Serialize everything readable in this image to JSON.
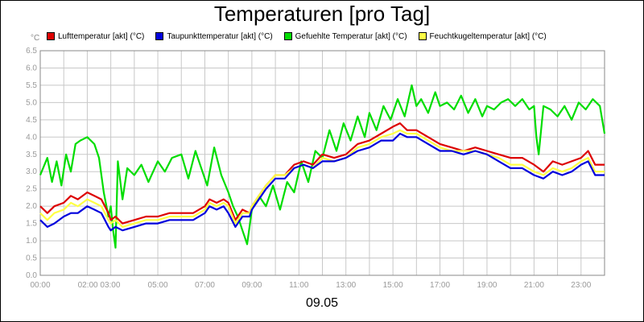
{
  "chart_data": {
    "type": "line",
    "title": "Temperaturen [pro Tag]",
    "xlabel": "09.05",
    "ylabel": "°C",
    "ylim": [
      0,
      6.5
    ],
    "y_ticks": [
      "0.0",
      "0.5",
      "1.0",
      "1.5",
      "2.0",
      "2.5",
      "3.0",
      "3.5",
      "4.0",
      "4.5",
      "5.0",
      "5.5",
      "6.0",
      "6.5"
    ],
    "x_ticks": [
      "00:00",
      "02:00 03:00",
      "05:00",
      "07:00",
      "09:00",
      "11:00",
      "13:00",
      "15:00",
      "17:00",
      "19:00",
      "21:00",
      "23:00"
    ],
    "x_range_hours": [
      0,
      24
    ],
    "grid": true,
    "legend_position": "top",
    "series": [
      {
        "name": "Gefuehlte Temperatur [akt] (°C)",
        "color": "#00dd00",
        "x": [
          0,
          0.3,
          0.5,
          0.7,
          0.9,
          1.1,
          1.3,
          1.5,
          1.7,
          2.0,
          2.3,
          2.5,
          2.7,
          2.9,
          3.0,
          3.1,
          3.2,
          3.3,
          3.5,
          3.7,
          4.0,
          4.3,
          4.6,
          5.0,
          5.3,
          5.6,
          6.0,
          6.3,
          6.6,
          6.9,
          7.1,
          7.4,
          7.7,
          8.0,
          8.2,
          8.4,
          8.6,
          8.8,
          9.0,
          9.3,
          9.6,
          9.9,
          10.2,
          10.5,
          10.8,
          11.1,
          11.4,
          11.7,
          12.0,
          12.3,
          12.6,
          12.9,
          13.2,
          13.5,
          13.8,
          14.0,
          14.3,
          14.6,
          14.9,
          15.2,
          15.5,
          15.8,
          16.0,
          16.2,
          16.5,
          16.8,
          17.0,
          17.3,
          17.6,
          17.9,
          18.2,
          18.5,
          18.8,
          19.0,
          19.3,
          19.6,
          19.9,
          20.2,
          20.5,
          20.8,
          21.0,
          21.1,
          21.2,
          21.4,
          21.7,
          22.0,
          22.3,
          22.6,
          22.9,
          23.2,
          23.5,
          23.8,
          24.0
        ],
        "values": [
          2.9,
          3.4,
          2.7,
          3.3,
          2.6,
          3.5,
          3.0,
          3.8,
          3.9,
          4.0,
          3.8,
          3.4,
          2.4,
          1.7,
          2.0,
          1.3,
          0.8,
          3.3,
          2.2,
          3.1,
          2.9,
          3.2,
          2.7,
          3.3,
          3.0,
          3.4,
          3.5,
          2.8,
          3.6,
          3.0,
          2.6,
          3.7,
          2.9,
          2.4,
          2.0,
          1.7,
          1.3,
          0.9,
          1.9,
          2.3,
          2.0,
          2.6,
          1.9,
          2.7,
          2.4,
          3.3,
          2.7,
          3.6,
          3.4,
          4.2,
          3.6,
          4.4,
          3.9,
          4.6,
          4.0,
          4.7,
          4.2,
          4.9,
          4.5,
          5.1,
          4.6,
          5.5,
          4.9,
          5.1,
          4.7,
          5.3,
          4.9,
          5.0,
          4.8,
          5.2,
          4.7,
          5.1,
          4.6,
          4.9,
          4.8,
          5.0,
          5.1,
          4.9,
          5.1,
          4.8,
          4.9,
          4.0,
          3.5,
          4.9,
          4.8,
          4.6,
          4.9,
          4.5,
          5.0,
          4.8,
          5.1,
          4.9,
          4.1
        ]
      },
      {
        "name": "Lufttemperatur [akt] (°C)",
        "color": "#dd0000",
        "x": [
          0,
          0.3,
          0.6,
          1.0,
          1.3,
          1.6,
          2.0,
          2.3,
          2.6,
          2.9,
          3.0,
          3.2,
          3.5,
          4.0,
          4.5,
          5.0,
          5.5,
          6.0,
          6.5,
          7.0,
          7.2,
          7.5,
          7.8,
          8.0,
          8.3,
          8.6,
          8.9,
          9.0,
          9.3,
          9.6,
          10.0,
          10.4,
          10.8,
          11.2,
          11.6,
          12.0,
          12.5,
          13.0,
          13.5,
          14.0,
          14.5,
          15.0,
          15.3,
          15.6,
          16.0,
          16.5,
          17.0,
          17.5,
          18.0,
          18.5,
          19.0,
          19.5,
          20.0,
          20.5,
          21.0,
          21.4,
          21.8,
          22.2,
          22.6,
          23.0,
          23.3,
          23.6,
          24.0
        ],
        "values": [
          2.0,
          1.8,
          2.0,
          2.1,
          2.3,
          2.2,
          2.4,
          2.3,
          2.2,
          1.8,
          1.6,
          1.7,
          1.5,
          1.6,
          1.7,
          1.7,
          1.8,
          1.8,
          1.8,
          2.0,
          2.2,
          2.1,
          2.2,
          2.1,
          1.6,
          1.9,
          1.8,
          2.0,
          2.3,
          2.6,
          2.9,
          2.9,
          3.2,
          3.3,
          3.2,
          3.5,
          3.4,
          3.5,
          3.8,
          3.9,
          4.1,
          4.3,
          4.4,
          4.2,
          4.2,
          4.0,
          3.8,
          3.7,
          3.6,
          3.7,
          3.6,
          3.5,
          3.4,
          3.4,
          3.2,
          3.0,
          3.3,
          3.2,
          3.3,
          3.4,
          3.6,
          3.2,
          3.2
        ]
      },
      {
        "name": "Taupunkttemperatur [akt] (°C)",
        "color": "#0000dd",
        "x": [
          0,
          0.3,
          0.6,
          1.0,
          1.3,
          1.6,
          2.0,
          2.3,
          2.6,
          2.9,
          3.0,
          3.2,
          3.5,
          4.0,
          4.5,
          5.0,
          5.5,
          6.0,
          6.5,
          7.0,
          7.2,
          7.5,
          7.8,
          8.0,
          8.3,
          8.6,
          8.9,
          9.0,
          9.3,
          9.6,
          10.0,
          10.4,
          10.8,
          11.2,
          11.6,
          12.0,
          12.5,
          13.0,
          13.5,
          14.0,
          14.5,
          15.0,
          15.3,
          15.6,
          16.0,
          16.5,
          17.0,
          17.5,
          18.0,
          18.5,
          19.0,
          19.5,
          20.0,
          20.5,
          21.0,
          21.4,
          21.8,
          22.2,
          22.6,
          23.0,
          23.3,
          23.6,
          24.0
        ],
        "values": [
          1.6,
          1.4,
          1.5,
          1.7,
          1.8,
          1.8,
          2.0,
          1.9,
          1.8,
          1.4,
          1.3,
          1.4,
          1.3,
          1.4,
          1.5,
          1.5,
          1.6,
          1.6,
          1.6,
          1.8,
          2.0,
          1.9,
          2.0,
          1.8,
          1.4,
          1.7,
          1.7,
          1.9,
          2.2,
          2.5,
          2.8,
          2.8,
          3.1,
          3.2,
          3.1,
          3.3,
          3.3,
          3.4,
          3.6,
          3.7,
          3.9,
          3.9,
          4.1,
          4.0,
          4.0,
          3.8,
          3.6,
          3.6,
          3.5,
          3.6,
          3.5,
          3.3,
          3.1,
          3.1,
          2.9,
          2.8,
          3.0,
          2.9,
          3.0,
          3.2,
          3.3,
          2.9,
          2.9
        ]
      },
      {
        "name": "Feuchtkugeltemperatur [akt] (°C)",
        "color": "#ffff44",
        "x": [
          0,
          0.3,
          0.6,
          1.0,
          1.3,
          1.6,
          2.0,
          2.3,
          2.6,
          2.9,
          3.0,
          3.2,
          3.5,
          4.0,
          4.5,
          5.0,
          5.5,
          6.0,
          6.5,
          7.0,
          7.2,
          7.5,
          7.8,
          8.0,
          8.3,
          8.6,
          8.9,
          9.0,
          9.3,
          9.6,
          10.0,
          10.4,
          10.8,
          11.2,
          11.6,
          12.0,
          12.5,
          13.0,
          13.5,
          14.0,
          14.5,
          15.0,
          15.3,
          15.6,
          16.0,
          16.5,
          17.0,
          17.5,
          18.0,
          18.5,
          19.0,
          19.5,
          20.0,
          20.5,
          21.0,
          21.4,
          21.8,
          22.2,
          22.6,
          23.0,
          23.3,
          23.6,
          24.0
        ],
        "values": [
          1.8,
          1.6,
          1.8,
          1.9,
          2.1,
          2.0,
          2.2,
          2.1,
          2.0,
          1.6,
          1.5,
          1.6,
          1.4,
          1.5,
          1.6,
          1.6,
          1.7,
          1.7,
          1.7,
          1.9,
          2.1,
          2.0,
          2.1,
          2.0,
          1.5,
          1.8,
          1.8,
          2.0,
          2.3,
          2.6,
          2.9,
          2.9,
          3.1,
          3.2,
          3.1,
          3.4,
          3.3,
          3.4,
          3.7,
          3.8,
          4.0,
          4.1,
          4.2,
          4.1,
          4.1,
          3.9,
          3.7,
          3.6,
          3.6,
          3.6,
          3.5,
          3.4,
          3.2,
          3.2,
          3.0,
          2.9,
          3.1,
          3.0,
          3.1,
          3.3,
          3.4,
          3.0,
          3.0
        ]
      }
    ]
  }
}
